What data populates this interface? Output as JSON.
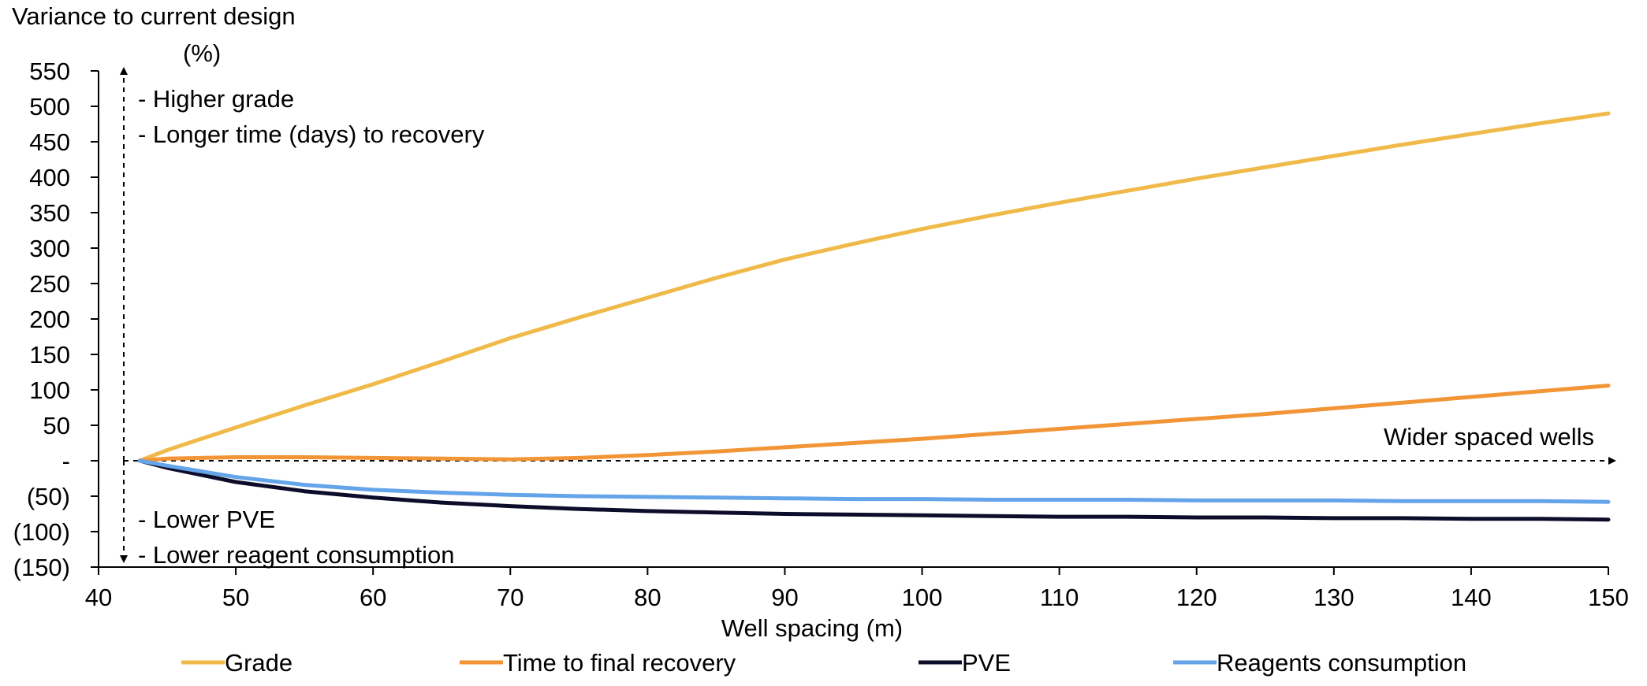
{
  "chart_data": {
    "type": "line",
    "y_axis_title_line1": "Variance to current design",
    "y_axis_title_line2": "(%)",
    "xlabel": "Well spacing (m)",
    "xlim": [
      40,
      150
    ],
    "ylim": [
      -150,
      550
    ],
    "x_ticks": [
      40,
      50,
      60,
      70,
      80,
      90,
      100,
      110,
      120,
      130,
      140,
      150
    ],
    "y_ticks": [
      {
        "value": 550,
        "label": "550"
      },
      {
        "value": 500,
        "label": "500"
      },
      {
        "value": 450,
        "label": "450"
      },
      {
        "value": 400,
        "label": "400"
      },
      {
        "value": 350,
        "label": "350"
      },
      {
        "value": 300,
        "label": "300"
      },
      {
        "value": 250,
        "label": "250"
      },
      {
        "value": 200,
        "label": "200"
      },
      {
        "value": 150,
        "label": "150"
      },
      {
        "value": 100,
        "label": "100"
      },
      {
        "value": 50,
        "label": "50"
      },
      {
        "value": 0,
        "label": "-"
      },
      {
        "value": -50,
        "label": "(50)"
      },
      {
        "value": -100,
        "label": "(100)"
      },
      {
        "value": -150,
        "label": "(150)"
      }
    ],
    "x": [
      43,
      45,
      50,
      55,
      60,
      65,
      70,
      75,
      80,
      85,
      90,
      95,
      100,
      105,
      110,
      115,
      120,
      125,
      130,
      135,
      140,
      145,
      150
    ],
    "series": [
      {
        "name": "Grade",
        "color": "#f0ba4a",
        "values": [
          0,
          15,
          47,
          78,
          108,
          140,
          173,
          202,
          230,
          258,
          284,
          306,
          327,
          346,
          364,
          381,
          398,
          414,
          430,
          446,
          461,
          476,
          490
        ]
      },
      {
        "name": "Time to final recovery",
        "color": "#f29537",
        "values": [
          0,
          3,
          5,
          5,
          4,
          3,
          2,
          4,
          8,
          13,
          19,
          25,
          31,
          38,
          45,
          52,
          59,
          66,
          74,
          82,
          90,
          98,
          106
        ]
      },
      {
        "name": "PVE",
        "color": "#0d0d2b",
        "values": [
          0,
          -10,
          -30,
          -43,
          -52,
          -59,
          -64,
          -68,
          -71,
          -73,
          -75,
          -76,
          -77,
          -78,
          -79,
          -79,
          -80,
          -80,
          -81,
          -81,
          -82,
          -82,
          -83
        ]
      },
      {
        "name": "Reagents consumption",
        "color": "#64a4e8",
        "values": [
          0,
          -7,
          -23,
          -34,
          -41,
          -45,
          -48,
          -50,
          -51,
          -52,
          -53,
          -54,
          -54,
          -55,
          -55,
          -55,
          -56,
          -56,
          -56,
          -57,
          -57,
          -57,
          -58
        ]
      }
    ],
    "annotations": {
      "up_1": "- Higher grade",
      "up_2": "- Longer time (days) to recovery",
      "down_1": "- Lower PVE",
      "down_2": "- Lower reagent consumption",
      "right": "Wider spaced wells"
    },
    "legend_position": "bottom",
    "grid": false
  }
}
